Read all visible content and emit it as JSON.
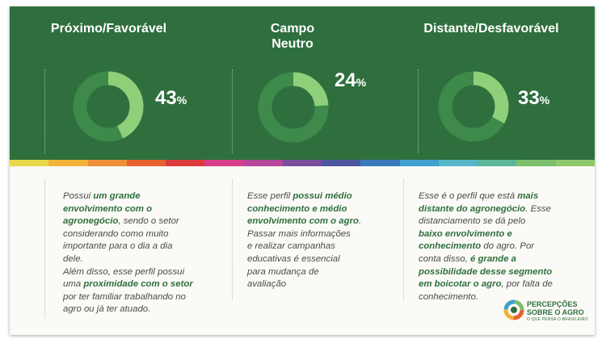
{
  "chart_data": [
    {
      "type": "pie",
      "title": "Próximo/Favorável",
      "values": [
        43
      ],
      "label": "43",
      "unit": "%"
    },
    {
      "type": "pie",
      "title": "Campo Neutro",
      "values": [
        24
      ],
      "label": "24",
      "unit": "%"
    },
    {
      "type": "pie",
      "title": "Distante/Desfavorável",
      "values": [
        33
      ],
      "label": "33",
      "unit": "%"
    }
  ],
  "colors": {
    "top_background": "#2f6f3e",
    "donut_base": "#3d8a4a",
    "donut_highlight": "#8fcf7a",
    "emphasis_text": "#2f6f3e"
  },
  "stripe_colors": [
    "#e7d84c",
    "#f2b23a",
    "#ee8f3a",
    "#e5612f",
    "#dc3b3a",
    "#d63e8a",
    "#b6479d",
    "#7c4c9e",
    "#4f56a0",
    "#3b79b9",
    "#3f9fd0",
    "#56b6c8",
    "#5bb79a",
    "#7cc06d",
    "#8ec868"
  ],
  "descriptions": [
    {
      "lines": [
        [
          {
            "t": "Possui "
          },
          {
            "t": "um grande",
            "b": true
          }
        ],
        [
          {
            "t": "envolvimento com o",
            "b": true
          }
        ],
        [
          {
            "t": "agronegócio",
            "b": true
          },
          {
            "t": ", sendo o setor"
          }
        ],
        [
          {
            "t": "considerando como muito"
          }
        ],
        [
          {
            "t": "importante para o dia a dia"
          }
        ],
        [
          {
            "t": "dele."
          }
        ],
        [
          {
            "t": "Além disso, esse perfil possui"
          }
        ],
        [
          {
            "t": "uma "
          },
          {
            "t": "proximidade com o setor",
            "b": true
          }
        ],
        [
          {
            "t": "por ter familiar trabalhando no"
          }
        ],
        [
          {
            "t": "agro ou já ter atuado."
          }
        ]
      ]
    },
    {
      "lines": [
        [
          {
            "t": "Esse perfil "
          },
          {
            "t": "possui médio",
            "b": true
          }
        ],
        [
          {
            "t": "conhecimento e médio",
            "b": true
          }
        ],
        [
          {
            "t": "envolvimento com o agro",
            "b": true
          },
          {
            "t": "."
          }
        ],
        [
          {
            "t": "Passar mais informações"
          }
        ],
        [
          {
            "t": "e realizar campanhas"
          }
        ],
        [
          {
            "t": "educativas é essencial"
          }
        ],
        [
          {
            "t": "para mudança de"
          }
        ],
        [
          {
            "t": "avaliação"
          }
        ]
      ]
    },
    {
      "lines": [
        [
          {
            "t": "Esse é o perfil que está "
          },
          {
            "t": "mais",
            "b": true
          }
        ],
        [
          {
            "t": "distante do agronegócio",
            "b": true
          },
          {
            "t": ". Esse"
          }
        ],
        [
          {
            "t": "distanciamento se dá pelo"
          }
        ],
        [
          {
            "t": "baixo envolvimento e",
            "b": true
          }
        ],
        [
          {
            "t": "conhecimento",
            "b": true
          },
          {
            "t": " do agro. Por"
          }
        ],
        [
          {
            "t": "conta disso, "
          },
          {
            "t": "é grande a",
            "b": true
          }
        ],
        [
          {
            "t": "possibilidade desse segmento",
            "b": true
          }
        ],
        [
          {
            "t": "em boicotar o agro",
            "b": true
          },
          {
            "t": ", por falta de"
          }
        ],
        [
          {
            "t": "conhecimento."
          }
        ]
      ]
    }
  ],
  "logo": {
    "line1": "PERCEPÇÕES",
    "line2": "SOBRE O AGRO",
    "line3": "O QUE PENSA O BRASILEIRO",
    "icon": "logo-ring-icon"
  }
}
